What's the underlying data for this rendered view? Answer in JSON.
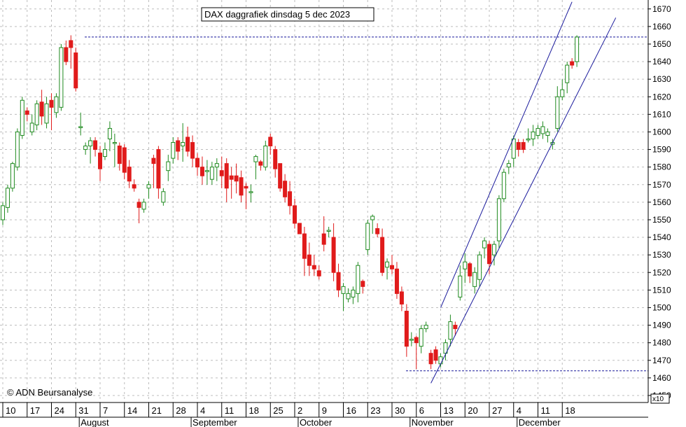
{
  "chart_data": {
    "type": "candlestick",
    "title": "DAX daggrafiek dinsdag 5 dec 2023",
    "copyright": "© ADN Beursanalyse",
    "multiplier_label": "x10",
    "ylim": [
      1445,
      1675
    ],
    "y_ticks": [
      1450,
      1460,
      1470,
      1480,
      1490,
      1500,
      1510,
      1520,
      1530,
      1540,
      1550,
      1560,
      1570,
      1580,
      1590,
      1600,
      1610,
      1620,
      1630,
      1640,
      1650,
      1660,
      1670
    ],
    "x_ticks": [
      "10",
      "17",
      "24",
      "31",
      "7",
      "14",
      "21",
      "28",
      "4",
      "11",
      "18",
      "25",
      "2",
      "9",
      "16",
      "23",
      "30",
      "6",
      "13",
      "20",
      "27",
      "4",
      "11",
      "18"
    ],
    "x_tick_index": [
      0,
      5,
      10,
      15,
      20,
      25,
      30,
      35,
      40,
      45,
      50,
      55,
      60,
      65,
      70,
      75,
      80,
      85,
      90,
      95,
      100,
      105,
      110,
      115
    ],
    "months": [
      {
        "label": "August",
        "index": 16
      },
      {
        "label": "September",
        "index": 39
      },
      {
        "label": "October",
        "index": 61
      },
      {
        "label": "November",
        "index": 84
      },
      {
        "label": "December",
        "index": 106
      }
    ],
    "candles": [
      [
        1550,
        1558,
        1547,
        1560
      ],
      [
        1557,
        1568,
        1554,
        1570
      ],
      [
        1568,
        1582,
        1566,
        1583
      ],
      [
        1580,
        1600,
        1578,
        1602
      ],
      [
        1598,
        1618,
        1596,
        1620
      ],
      [
        1612,
        1610,
        1606,
        1614
      ],
      [
        1600,
        1605,
        1598,
        1610
      ],
      [
        1604,
        1616,
        1601,
        1618
      ],
      [
        1617,
        1609,
        1604,
        1624
      ],
      [
        1605,
        1616,
        1602,
        1620
      ],
      [
        1618,
        1614,
        1601,
        1622
      ],
      [
        1611,
        1620,
        1608,
        1622
      ],
      [
        1614,
        1648,
        1612,
        1650
      ],
      [
        1648,
        1640,
        1638,
        1652
      ],
      [
        1652,
        1648,
        1636,
        1655
      ],
      [
        1645,
        1625,
        1623,
        1648
      ],
      [
        1603,
        1603,
        1598,
        1611
      ],
      [
        1590,
        1592,
        1587,
        1594
      ],
      [
        1592,
        1595,
        1582,
        1597
      ],
      [
        1595,
        1590,
        1586,
        1597
      ],
      [
        1588,
        1579,
        1572,
        1592
      ],
      [
        1586,
        1590,
        1584,
        1594
      ],
      [
        1596,
        1602,
        1589,
        1606
      ],
      [
        1594,
        1594,
        1580,
        1599
      ],
      [
        1592,
        1582,
        1578,
        1594
      ],
      [
        1591,
        1577,
        1573,
        1593
      ],
      [
        1580,
        1572,
        1568,
        1584
      ],
      [
        1570,
        1568,
        1566,
        1573
      ],
      [
        1560,
        1557,
        1548,
        1562
      ],
      [
        1556,
        1560,
        1554,
        1562
      ],
      [
        1568,
        1570,
        1562,
        1572
      ],
      [
        1585,
        1582,
        1568,
        1587
      ],
      [
        1590,
        1568,
        1562,
        1592
      ],
      [
        1560,
        1566,
        1558,
        1568
      ],
      [
        1578,
        1583,
        1572,
        1587
      ],
      [
        1585,
        1594,
        1582,
        1597
      ],
      [
        1595,
        1589,
        1584,
        1597
      ],
      [
        1592,
        1594,
        1583,
        1605
      ],
      [
        1597,
        1589,
        1586,
        1603
      ],
      [
        1594,
        1585,
        1580,
        1598
      ],
      [
        1585,
        1580,
        1575,
        1588
      ],
      [
        1580,
        1575,
        1570,
        1586
      ],
      [
        1578,
        1578,
        1570,
        1584
      ],
      [
        1573,
        1580,
        1570,
        1583
      ],
      [
        1580,
        1582,
        1572,
        1585
      ],
      [
        1578,
        1575,
        1568,
        1586
      ],
      [
        1582,
        1568,
        1560,
        1585
      ],
      [
        1575,
        1573,
        1562,
        1580
      ],
      [
        1575,
        1572,
        1565,
        1582
      ],
      [
        1574,
        1564,
        1560,
        1578
      ],
      [
        1569,
        1568,
        1556,
        1571
      ],
      [
        1566,
        1566,
        1560,
        1570
      ],
      [
        1583,
        1586,
        1573,
        1587
      ],
      [
        1583,
        1581,
        1578,
        1584
      ],
      [
        1580,
        1592,
        1578,
        1595
      ],
      [
        1597,
        1592,
        1587,
        1599
      ],
      [
        1590,
        1579,
        1574,
        1592
      ],
      [
        1582,
        1568,
        1566,
        1582
      ],
      [
        1572,
        1563,
        1560,
        1576
      ],
      [
        1566,
        1558,
        1553,
        1572
      ],
      [
        1558,
        1548,
        1545,
        1562
      ],
      [
        1548,
        1542,
        1542,
        1548
      ],
      [
        1542,
        1528,
        1518,
        1546
      ],
      [
        1530,
        1524,
        1518,
        1537
      ],
      [
        1524,
        1522,
        1518,
        1530
      ],
      [
        1521,
        1518,
        1516,
        1524
      ],
      [
        1542,
        1536,
        1532,
        1552
      ],
      [
        1544,
        1544,
        1540,
        1546
      ],
      [
        1540,
        1520,
        1515,
        1548
      ],
      [
        1520,
        1510,
        1506,
        1525
      ],
      [
        1508,
        1512,
        1498,
        1514
      ],
      [
        1505,
        1508,
        1503,
        1511
      ],
      [
        1506,
        1510,
        1502,
        1512
      ],
      [
        1508,
        1524,
        1503,
        1526
      ],
      [
        1515,
        1512,
        1508,
        1516
      ],
      [
        1533,
        1548,
        1530,
        1550
      ],
      [
        1550,
        1552,
        1542,
        1553
      ],
      [
        1545,
        1542,
        1540,
        1548
      ],
      [
        1540,
        1520,
        1518,
        1545
      ],
      [
        1523,
        1526,
        1516,
        1528
      ],
      [
        1524,
        1522,
        1519,
        1530
      ],
      [
        1522,
        1508,
        1505,
        1526
      ],
      [
        1509,
        1502,
        1498,
        1512
      ],
      [
        1498,
        1478,
        1472,
        1502
      ],
      [
        1482,
        1482,
        1478,
        1486
      ],
      [
        1483,
        1480,
        1465,
        1484
      ],
      [
        1478,
        1488,
        1474,
        1490
      ],
      [
        1488,
        1490,
        1486,
        1492
      ],
      [
        1474,
        1468,
        1465,
        1476
      ],
      [
        1476,
        1470,
        1468,
        1478
      ],
      [
        1468,
        1472,
        1466,
        1474
      ],
      [
        1474,
        1480,
        1470,
        1482
      ],
      [
        1482,
        1492,
        1478,
        1496
      ],
      [
        1490,
        1488,
        1484,
        1492
      ],
      [
        1506,
        1518,
        1504,
        1524
      ],
      [
        1522,
        1526,
        1514,
        1531
      ],
      [
        1525,
        1518,
        1514,
        1526
      ],
      [
        1512,
        1520,
        1508,
        1523
      ],
      [
        1516,
        1530,
        1512,
        1532
      ],
      [
        1534,
        1538,
        1528,
        1540
      ],
      [
        1536,
        1525,
        1519,
        1538
      ],
      [
        1530,
        1536,
        1524,
        1538
      ],
      [
        1538,
        1562,
        1534,
        1564
      ],
      [
        1562,
        1577,
        1560,
        1579
      ],
      [
        1580,
        1582,
        1576,
        1584
      ],
      [
        1585,
        1596,
        1580,
        1598
      ],
      [
        1594,
        1590,
        1586,
        1596
      ],
      [
        1594,
        1590,
        1588,
        1596
      ],
      [
        1596,
        1596,
        1594,
        1602
      ],
      [
        1596,
        1600,
        1592,
        1604
      ],
      [
        1598,
        1602,
        1596,
        1604
      ],
      [
        1599,
        1603,
        1596,
        1606
      ],
      [
        1598,
        1600,
        1594,
        1602
      ],
      [
        1593,
        1594,
        1590,
        1596
      ],
      [
        1602,
        1620,
        1600,
        1626
      ],
      [
        1620,
        1624,
        1618,
        1630
      ],
      [
        1628,
        1638,
        1622,
        1640
      ],
      [
        1640,
        1638,
        1636,
        1642
      ],
      [
        1640,
        1654,
        1637,
        1655
      ]
    ],
    "reference_lines": [
      1654,
      1464
    ],
    "channel_upper": [
      [
        90,
        1500
      ],
      [
        117,
        1674
      ]
    ],
    "channel_lower": [
      [
        88,
        1457
      ],
      [
        126,
        1665
      ]
    ]
  }
}
